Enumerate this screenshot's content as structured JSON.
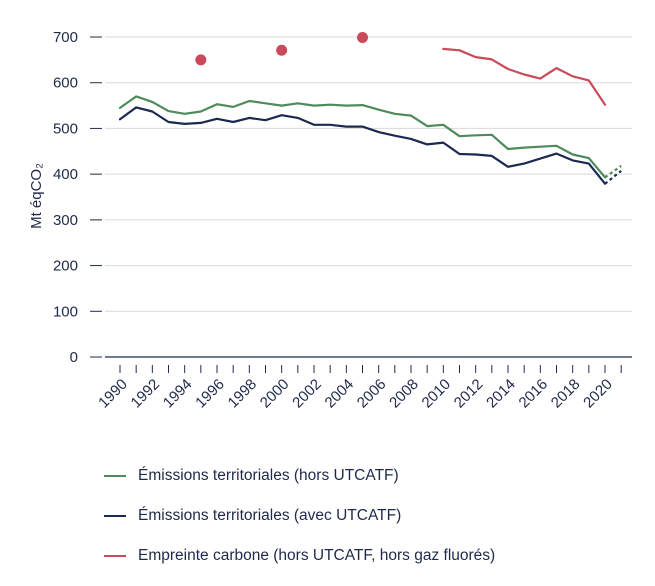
{
  "chart_data": {
    "type": "line",
    "ylabel": "Mt éqCO₂",
    "ylim": [
      0,
      720
    ],
    "yticks": [
      0,
      100,
      200,
      300,
      400,
      500,
      600,
      700
    ],
    "xlim": [
      1989.5,
      2021.5
    ],
    "xtick_labels": [
      "1990",
      "1992",
      "1994",
      "1996",
      "1998",
      "2000",
      "2002",
      "2004",
      "2006",
      "2008",
      "2010",
      "2012",
      "2014",
      "2016",
      "2018",
      "2020"
    ],
    "grid": true,
    "legend_position": "bottom",
    "series": [
      {
        "name": "Émissions territoriales (hors UTCATF)",
        "color": "#4e8a5a",
        "x": [
          1990,
          1991,
          1992,
          1993,
          1994,
          1995,
          1996,
          1997,
          1998,
          1999,
          2000,
          2001,
          2002,
          2003,
          2004,
          2005,
          2006,
          2007,
          2008,
          2009,
          2010,
          2011,
          2012,
          2013,
          2014,
          2015,
          2016,
          2017,
          2018,
          2019,
          2020
        ],
        "values": [
          545,
          570,
          558,
          538,
          532,
          537,
          553,
          547,
          560,
          555,
          550,
          555,
          550,
          552,
          550,
          551,
          541,
          532,
          528,
          505,
          508,
          483,
          485,
          486,
          455,
          458,
          460,
          462,
          443,
          435,
          393
        ],
        "projection": {
          "x": [
            2020,
            2021
          ],
          "values": [
            393,
            418
          ]
        }
      },
      {
        "name": "Émissions territoriales (avec UTCATF)",
        "color": "#1b2a52",
        "x": [
          1990,
          1991,
          1992,
          1993,
          1994,
          1995,
          1996,
          1997,
          1998,
          1999,
          2000,
          2001,
          2002,
          2003,
          2004,
          2005,
          2006,
          2007,
          2008,
          2009,
          2010,
          2011,
          2012,
          2013,
          2014,
          2015,
          2016,
          2017,
          2018,
          2019,
          2020
        ],
        "values": [
          520,
          546,
          537,
          514,
          510,
          512,
          521,
          514,
          523,
          518,
          529,
          523,
          508,
          508,
          504,
          504,
          492,
          484,
          477,
          465,
          469,
          444,
          443,
          440,
          416,
          423,
          434,
          445,
          430,
          423,
          379
        ],
        "projection": {
          "x": [
            2020,
            2021
          ],
          "values": [
            379,
            407
          ]
        }
      },
      {
        "name": "Empreinte carbone (hors UTCATF, hors gaz fluorés)",
        "color": "#c94a5a",
        "points": {
          "x": [
            1995,
            2000,
            2005
          ],
          "values": [
            650,
            671,
            699
          ]
        },
        "x": [
          2010,
          2011,
          2012,
          2013,
          2014,
          2015,
          2016,
          2017,
          2018,
          2019,
          2020
        ],
        "values": [
          674,
          671,
          656,
          651,
          630,
          618,
          609,
          632,
          614,
          605,
          552
        ]
      }
    ]
  }
}
